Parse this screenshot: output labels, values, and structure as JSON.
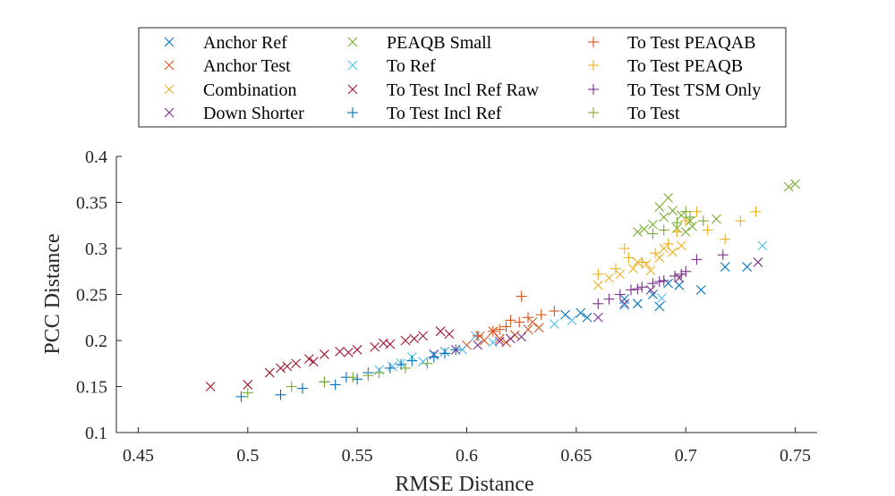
{
  "chart_data": {
    "type": "scatter",
    "xlabel": "RMSE Distance",
    "ylabel": "PCC Distance",
    "xlim": [
      0.44,
      0.76
    ],
    "ylim": [
      0.1,
      0.4
    ],
    "xticks": [
      0.45,
      0.5,
      0.55,
      0.6,
      0.65,
      0.7,
      0.75
    ],
    "xtick_labels": [
      "0.45",
      "0.5",
      "0.55",
      "0.6",
      "0.65",
      "0.7",
      "0.75"
    ],
    "yticks": [
      0.1,
      0.15,
      0.2,
      0.25,
      0.3,
      0.35,
      0.4
    ],
    "ytick_labels": [
      "0.1",
      "0.15",
      "0.2",
      "0.25",
      "0.3",
      "0.35",
      "0.4"
    ],
    "grid": false,
    "legend_position": "top",
    "series": [
      {
        "name": "Anchor Ref",
        "marker": "x",
        "color": "#0072BD",
        "points": [
          [
            0.655,
            0.225
          ],
          [
            0.672,
            0.245
          ],
          [
            0.678,
            0.24
          ],
          [
            0.688,
            0.237
          ],
          [
            0.697,
            0.26
          ],
          [
            0.707,
            0.255
          ],
          [
            0.718,
            0.28
          ],
          [
            0.728,
            0.28
          ],
          [
            0.652,
            0.23
          ],
          [
            0.645,
            0.228
          ],
          [
            0.685,
            0.25
          ],
          [
            0.692,
            0.262
          ]
        ]
      },
      {
        "name": "Anchor Test",
        "marker": "x",
        "color": "#D95319",
        "points": [
          [
            0.6,
            0.195
          ],
          [
            0.608,
            0.2
          ],
          [
            0.615,
            0.202
          ],
          [
            0.622,
            0.206
          ],
          [
            0.628,
            0.212
          ],
          [
            0.633,
            0.214
          ],
          [
            0.618,
            0.198
          ],
          [
            0.606,
            0.205
          ],
          [
            0.63,
            0.22
          ],
          [
            0.612,
            0.21
          ]
        ]
      },
      {
        "name": "Combination",
        "marker": "x",
        "color": "#EDB120",
        "points": [
          [
            0.66,
            0.26
          ],
          [
            0.67,
            0.272
          ],
          [
            0.676,
            0.278
          ],
          [
            0.682,
            0.283
          ],
          [
            0.688,
            0.29
          ],
          [
            0.694,
            0.296
          ],
          [
            0.698,
            0.303
          ],
          [
            0.678,
            0.285
          ],
          [
            0.665,
            0.268
          ],
          [
            0.69,
            0.3
          ],
          [
            0.684,
            0.276
          ]
        ]
      },
      {
        "name": "Down Shorter",
        "marker": "x",
        "color": "#7E2F8E",
        "points": [
          [
            0.585,
            0.185
          ],
          [
            0.595,
            0.19
          ],
          [
            0.605,
            0.195
          ],
          [
            0.615,
            0.199
          ],
          [
            0.625,
            0.204
          ],
          [
            0.66,
            0.225
          ],
          [
            0.672,
            0.24
          ],
          [
            0.684,
            0.255
          ],
          [
            0.697,
            0.268
          ],
          [
            0.733,
            0.285
          ],
          [
            0.59,
            0.188
          ],
          [
            0.62,
            0.202
          ]
        ]
      },
      {
        "name": "PEAQB Small",
        "marker": "x",
        "color": "#77AC30",
        "points": [
          [
            0.678,
            0.318
          ],
          [
            0.685,
            0.326
          ],
          [
            0.69,
            0.334
          ],
          [
            0.694,
            0.341
          ],
          [
            0.698,
            0.336
          ],
          [
            0.703,
            0.324
          ],
          [
            0.692,
            0.355
          ],
          [
            0.714,
            0.332
          ],
          [
            0.747,
            0.367
          ],
          [
            0.75,
            0.37
          ],
          [
            0.681,
            0.321
          ],
          [
            0.7,
            0.318
          ],
          [
            0.688,
            0.345
          ],
          [
            0.696,
            0.322
          ],
          [
            0.702,
            0.33
          ]
        ]
      },
      {
        "name": "To Ref",
        "marker": "x",
        "color": "#4DBEEE",
        "points": [
          [
            0.56,
            0.168
          ],
          [
            0.57,
            0.175
          ],
          [
            0.575,
            0.182
          ],
          [
            0.58,
            0.177
          ],
          [
            0.59,
            0.188
          ],
          [
            0.598,
            0.19
          ],
          [
            0.604,
            0.205
          ],
          [
            0.612,
            0.198
          ],
          [
            0.64,
            0.218
          ],
          [
            0.648,
            0.222
          ],
          [
            0.672,
            0.238
          ],
          [
            0.689,
            0.246
          ],
          [
            0.735,
            0.303
          ],
          [
            0.566,
            0.172
          ],
          [
            0.585,
            0.184
          ]
        ]
      },
      {
        "name": "To Test Incl Ref Raw",
        "marker": "x",
        "color": "#A2142F",
        "points": [
          [
            0.483,
            0.15
          ],
          [
            0.5,
            0.152
          ],
          [
            0.51,
            0.165
          ],
          [
            0.515,
            0.17
          ],
          [
            0.522,
            0.175
          ],
          [
            0.528,
            0.18
          ],
          [
            0.535,
            0.185
          ],
          [
            0.542,
            0.188
          ],
          [
            0.55,
            0.19
          ],
          [
            0.558,
            0.193
          ],
          [
            0.565,
            0.196
          ],
          [
            0.572,
            0.2
          ],
          [
            0.58,
            0.205
          ],
          [
            0.588,
            0.21
          ],
          [
            0.592,
            0.207
          ],
          [
            0.518,
            0.172
          ],
          [
            0.546,
            0.187
          ],
          [
            0.576,
            0.202
          ],
          [
            0.53,
            0.177
          ],
          [
            0.562,
            0.197
          ]
        ]
      },
      {
        "name": "To Test Incl Ref",
        "marker": "+",
        "color": "#0072BD",
        "points": [
          [
            0.497,
            0.139
          ],
          [
            0.515,
            0.141
          ],
          [
            0.525,
            0.148
          ],
          [
            0.535,
            0.155
          ],
          [
            0.545,
            0.16
          ],
          [
            0.555,
            0.165
          ],
          [
            0.565,
            0.17
          ],
          [
            0.575,
            0.178
          ],
          [
            0.585,
            0.182
          ],
          [
            0.595,
            0.19
          ],
          [
            0.55,
            0.158
          ],
          [
            0.57,
            0.174
          ],
          [
            0.59,
            0.186
          ],
          [
            0.54,
            0.152
          ]
        ]
      },
      {
        "name": "To Test PEAQAB",
        "marker": "+",
        "color": "#D95319",
        "points": [
          [
            0.605,
            0.205
          ],
          [
            0.612,
            0.21
          ],
          [
            0.618,
            0.215
          ],
          [
            0.624,
            0.22
          ],
          [
            0.628,
            0.225
          ],
          [
            0.634,
            0.228
          ],
          [
            0.64,
            0.232
          ],
          [
            0.625,
            0.248
          ],
          [
            0.62,
            0.222
          ],
          [
            0.615,
            0.212
          ]
        ]
      },
      {
        "name": "To Test PEAQB",
        "marker": "+",
        "color": "#EDB120",
        "points": [
          [
            0.66,
            0.272
          ],
          [
            0.668,
            0.278
          ],
          [
            0.672,
            0.3
          ],
          [
            0.68,
            0.285
          ],
          [
            0.686,
            0.295
          ],
          [
            0.692,
            0.305
          ],
          [
            0.7,
            0.33
          ],
          [
            0.705,
            0.34
          ],
          [
            0.71,
            0.32
          ],
          [
            0.718,
            0.31
          ],
          [
            0.725,
            0.33
          ],
          [
            0.732,
            0.34
          ],
          [
            0.674,
            0.29
          ],
          [
            0.696,
            0.318
          ]
        ]
      },
      {
        "name": "To Test TSM Only",
        "marker": "+",
        "color": "#7E2F8E",
        "points": [
          [
            0.66,
            0.24
          ],
          [
            0.665,
            0.245
          ],
          [
            0.67,
            0.25
          ],
          [
            0.675,
            0.255
          ],
          [
            0.68,
            0.258
          ],
          [
            0.685,
            0.262
          ],
          [
            0.69,
            0.265
          ],
          [
            0.695,
            0.27
          ],
          [
            0.7,
            0.275
          ],
          [
            0.705,
            0.288
          ],
          [
            0.717,
            0.293
          ],
          [
            0.678,
            0.256
          ],
          [
            0.688,
            0.264
          ],
          [
            0.698,
            0.272
          ]
        ]
      },
      {
        "name": "To Test",
        "marker": "+",
        "color": "#77AC30",
        "points": [
          [
            0.5,
            0.143
          ],
          [
            0.52,
            0.15
          ],
          [
            0.535,
            0.155
          ],
          [
            0.548,
            0.16
          ],
          [
            0.56,
            0.165
          ],
          [
            0.572,
            0.17
          ],
          [
            0.582,
            0.175
          ],
          [
            0.69,
            0.32
          ],
          [
            0.696,
            0.328
          ],
          [
            0.702,
            0.334
          ],
          [
            0.708,
            0.33
          ],
          [
            0.685,
            0.316
          ],
          [
            0.7,
            0.34
          ],
          [
            0.555,
            0.162
          ]
        ]
      }
    ]
  }
}
